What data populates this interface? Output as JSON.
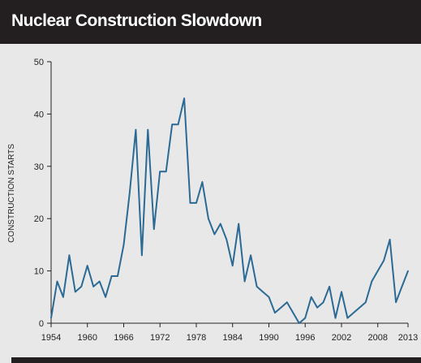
{
  "chart_data": {
    "type": "line",
    "title": "Nuclear Construction Slowdown",
    "xlabel": "",
    "ylabel": "CONSTRUCTION STARTS",
    "xlim": [
      1954,
      2013
    ],
    "ylim": [
      0,
      50
    ],
    "x_ticks": [
      1954,
      1960,
      1966,
      1972,
      1978,
      1984,
      1990,
      1996,
      2002,
      2008,
      2013
    ],
    "y_ticks": [
      0,
      10,
      20,
      30,
      40,
      50
    ],
    "grid": false,
    "line_color": "#2b6a94",
    "series": [
      {
        "x": [
          1954,
          1955,
          1956,
          1957,
          1958,
          1959,
          1960,
          1961,
          1962,
          1963,
          1964,
          1965,
          1966,
          1967,
          1968,
          1969,
          1970,
          1971,
          1972,
          1973,
          1974,
          1975,
          1976,
          1977,
          1978,
          1979,
          1980,
          1981,
          1982,
          1983,
          1984,
          1985,
          1986,
          1987,
          1988,
          1989,
          1990,
          1991,
          1992,
          1993,
          1994,
          1995,
          1996,
          1997,
          1998,
          1999,
          2000,
          2001,
          2002,
          2003,
          2004,
          2005,
          2006,
          2007,
          2008,
          2009,
          2010,
          2011,
          2012,
          2013
        ],
        "values": [
          1,
          8,
          5,
          13,
          6,
          7,
          11,
          7,
          8,
          5,
          9,
          9,
          15,
          25,
          37,
          13,
          37,
          18,
          29,
          29,
          38,
          38,
          43,
          23,
          23,
          27,
          20,
          17,
          19,
          16,
          11,
          19,
          8,
          13,
          7,
          6,
          5,
          2,
          3,
          4,
          2,
          0,
          1,
          5,
          3,
          4,
          7,
          1,
          6,
          1,
          2,
          3,
          4,
          8,
          10,
          12,
          16,
          4,
          7,
          10
        ]
      }
    ]
  }
}
